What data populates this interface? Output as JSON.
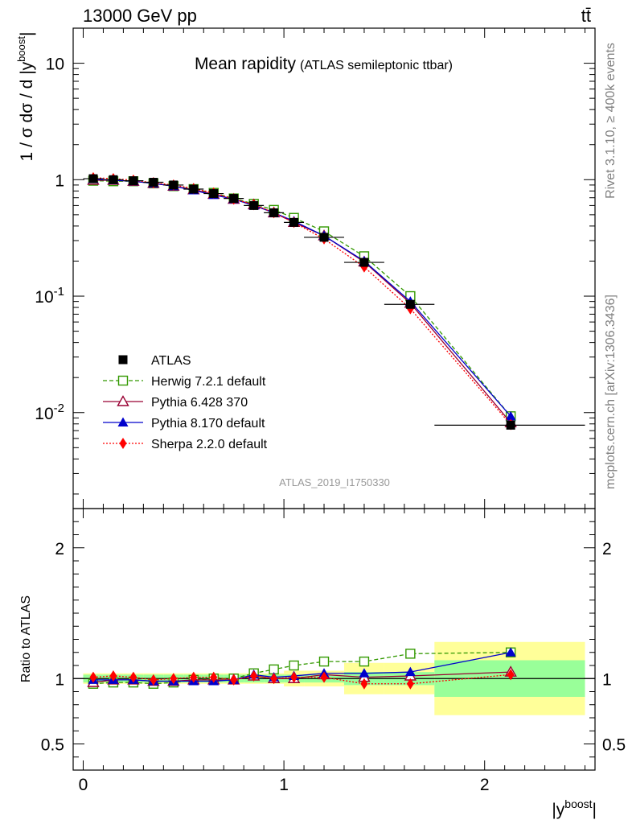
{
  "header": {
    "energy": "13000 GeV pp",
    "process": "tt̄",
    "side_rivet": "Rivet 3.1.10, ≥ 400k events",
    "side_mcplots": "mcplots.cern.ch [arXiv:1306.3436]"
  },
  "chart_data": {
    "type": "line",
    "title": "Mean rapidity",
    "subtitle": "(ATLAS semileptonic ttbar)",
    "analysis_id": "ATLAS_2019_I1750330",
    "xlabel": "|y^boost|",
    "ylabel_main": "1 / σ dσ / d |y^boost|",
    "ylabel_ratio": "Ratio to ATLAS",
    "xlim": [
      -0.05,
      2.55
    ],
    "ylim_main": [
      0.0015,
      20
    ],
    "yscale_main": "log",
    "ylim_ratio": [
      0.3,
      2.3
    ],
    "x_ticks": [
      "0",
      "1",
      "2"
    ],
    "y_ticks_main": [
      "10",
      "1",
      "10^-1",
      "10^-2"
    ],
    "y_ticks_ratio": [
      "2",
      "1",
      "0.5"
    ],
    "legend_position": "middle-left",
    "bins": [
      [
        0,
        0.1
      ],
      [
        0.1,
        0.2
      ],
      [
        0.2,
        0.3
      ],
      [
        0.3,
        0.4
      ],
      [
        0.4,
        0.5
      ],
      [
        0.5,
        0.6
      ],
      [
        0.6,
        0.7
      ],
      [
        0.7,
        0.8
      ],
      [
        0.8,
        0.9
      ],
      [
        0.9,
        1.0
      ],
      [
        1.0,
        1.1
      ],
      [
        1.1,
        1.3
      ],
      [
        1.3,
        1.5
      ],
      [
        1.5,
        1.75
      ],
      [
        1.75,
        2.5
      ]
    ],
    "x": [
      0.05,
      0.15,
      0.25,
      0.35,
      0.45,
      0.55,
      0.65,
      0.75,
      0.85,
      0.95,
      1.05,
      1.2,
      1.4,
      1.63,
      2.13
    ],
    "ratio_band_inner": [
      0.03,
      0.03,
      0.03,
      0.03,
      0.03,
      0.03,
      0.03,
      0.03,
      0.03,
      0.03,
      0.03,
      0.03,
      0.05,
      0.05,
      0.14
    ],
    "ratio_band_outer": [
      0.04,
      0.04,
      0.04,
      0.04,
      0.04,
      0.04,
      0.04,
      0.04,
      0.04,
      0.04,
      0.06,
      0.06,
      0.12,
      0.12,
      0.28
    ],
    "series": [
      {
        "name": "ATLAS",
        "color": "#000000",
        "marker": "square-filled",
        "dash": "none",
        "values": [
          1.02,
          1.0,
          0.98,
          0.95,
          0.9,
          0.83,
          0.76,
          0.69,
          0.6,
          0.52,
          0.43,
          0.32,
          0.195,
          0.085,
          0.0078
        ],
        "ratio": [
          1,
          1,
          1,
          1,
          1,
          1,
          1,
          1,
          1,
          1,
          1,
          1,
          1,
          1,
          1
        ]
      },
      {
        "name": "Herwig 7.2.1 default",
        "color": "#339900",
        "marker": "square-open",
        "dash": "5,3",
        "values": [
          0.98,
          0.97,
          0.97,
          0.93,
          0.88,
          0.83,
          0.77,
          0.69,
          0.62,
          0.55,
          0.47,
          0.36,
          0.22,
          0.1,
          0.0093
        ],
        "ratio": [
          0.96,
          0.97,
          0.97,
          0.96,
          0.97,
          0.99,
          1.0,
          1.0,
          1.04,
          1.07,
          1.1,
          1.13,
          1.13,
          1.19,
          1.2
        ]
      },
      {
        "name": "Pythia 6.428 370",
        "color": "#990033",
        "marker": "triangle-open",
        "dash": "none",
        "values": [
          0.99,
          0.99,
          0.97,
          0.93,
          0.88,
          0.82,
          0.75,
          0.68,
          0.61,
          0.52,
          0.43,
          0.33,
          0.197,
          0.087,
          0.0082
        ],
        "ratio": [
          0.97,
          0.99,
          0.99,
          0.98,
          0.98,
          0.99,
          0.99,
          0.99,
          1.02,
          1.0,
          1.0,
          1.03,
          1.01,
          1.02,
          1.05
        ]
      },
      {
        "name": "Pythia 8.170 default",
        "color": "#0000cc",
        "marker": "triangle-filled",
        "dash": "none",
        "values": [
          1.01,
          0.99,
          0.97,
          0.93,
          0.88,
          0.81,
          0.74,
          0.68,
          0.6,
          0.52,
          0.44,
          0.33,
          0.2,
          0.09,
          0.0093
        ],
        "ratio": [
          0.99,
          0.99,
          0.99,
          0.98,
          0.98,
          0.98,
          0.98,
          0.99,
          1.03,
          1.01,
          1.02,
          1.04,
          1.04,
          1.05,
          1.2
        ]
      },
      {
        "name": "Sherpa 2.2.0 default",
        "color": "#ff0000",
        "marker": "diamond-filled",
        "dash": "2,2",
        "values": [
          1.04,
          1.02,
          0.99,
          0.94,
          0.9,
          0.84,
          0.77,
          0.68,
          0.61,
          0.52,
          0.43,
          0.31,
          0.178,
          0.078,
          0.0079
        ],
        "ratio": [
          1.01,
          1.02,
          1.01,
          0.99,
          1.0,
          1.01,
          1.01,
          0.99,
          1.02,
          1.0,
          1.01,
          1.01,
          0.96,
          0.96,
          1.03
        ]
      }
    ]
  }
}
